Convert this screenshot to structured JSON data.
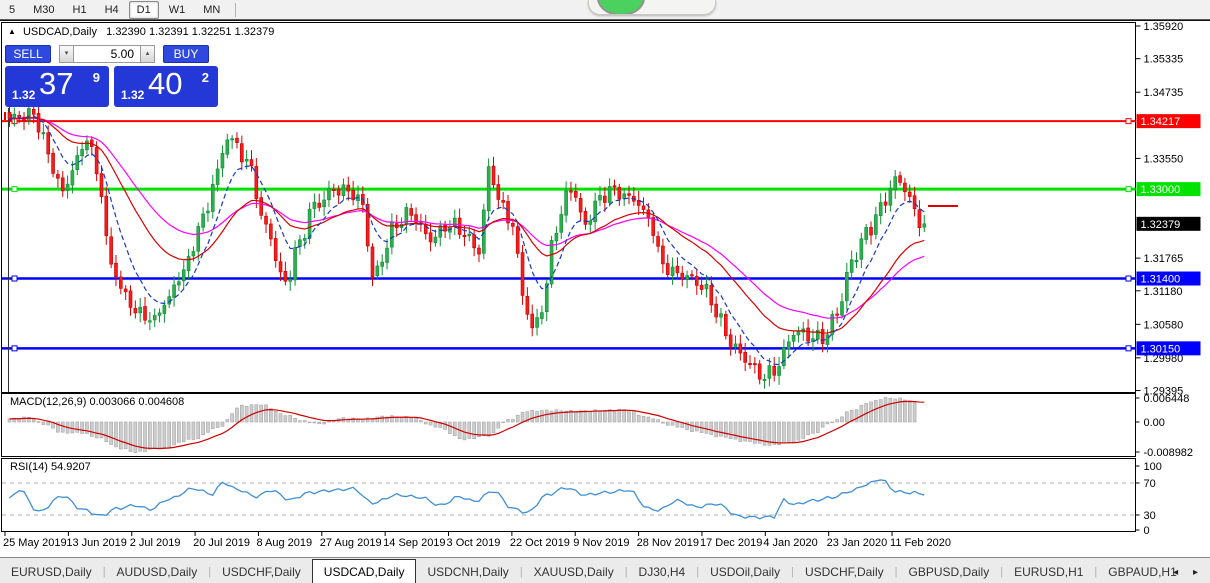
{
  "toolbar": {
    "timeframes": [
      "5",
      "M30",
      "H1",
      "H4",
      "D1",
      "W1",
      "MN"
    ],
    "active": "D1"
  },
  "chart": {
    "quote": {
      "symbol": "USDCAD,Daily",
      "values": "1.32390 1.32391 1.32251 1.32379"
    },
    "trade_panel": {
      "sell_label": "SELL",
      "buy_label": "BUY",
      "volume": "5.00",
      "sell_price": {
        "base": "1.32",
        "big": "37",
        "sup": "9"
      },
      "buy_price": {
        "base": "1.32",
        "big": "40",
        "sup": "2"
      }
    }
  },
  "chart_data": {
    "type": "candlestick",
    "symbol": "USDCAD",
    "timeframe": "Daily",
    "quote_ohlc": [
      1.3239,
      1.32391,
      1.32251,
      1.32379
    ],
    "bid": 1.32379,
    "ask": 1.32402,
    "num_candles": 190,
    "price_axis": {
      "max": 1.3592,
      "min": 1.29395,
      "ticks": [
        "1.35920",
        "1.35335",
        "1.34735",
        "1.33550",
        "1.31765",
        "1.31180",
        "1.30580",
        "1.29980",
        "1.29395"
      ]
    },
    "current_price_tag": {
      "label": "1.32379",
      "color": "#000000"
    },
    "h_lines": [
      {
        "price": 1.34217,
        "label": "1.34217",
        "color": "#ff0000",
        "width": 2
      },
      {
        "price": 1.33,
        "label": "1.33000",
        "color": "#00e200",
        "width": 3
      },
      {
        "price": 1.314,
        "label": "1.31400",
        "color": "#0000ff",
        "width": 2.5
      },
      {
        "price": 1.3015,
        "label": "1.30150",
        "color": "#0000ff",
        "width": 2.5
      }
    ],
    "price_anchors": [
      [
        0,
        1.342
      ],
      [
        3,
        1.3435
      ],
      [
        5,
        1.3442
      ],
      [
        7,
        1.339
      ],
      [
        9,
        1.333
      ],
      [
        11,
        1.3288
      ],
      [
        13,
        1.334
      ],
      [
        16,
        1.3398
      ],
      [
        18,
        1.333
      ],
      [
        21,
        1.316
      ],
      [
        24,
        1.3112
      ],
      [
        27,
        1.3078
      ],
      [
        30,
        1.3058
      ],
      [
        32,
        1.3095
      ],
      [
        36,
        1.316
      ],
      [
        40,
        1.324
      ],
      [
        43,
        1.333
      ],
      [
        45,
        1.3403
      ],
      [
        47,
        1.338
      ],
      [
        49,
        1.3345
      ],
      [
        53,
        1.323
      ],
      [
        57,
        1.3137
      ],
      [
        60,
        1.32
      ],
      [
        63,
        1.327
      ],
      [
        67,
        1.3305
      ],
      [
        70,
        1.3292
      ],
      [
        73,
        1.3268
      ],
      [
        75,
        1.3145
      ],
      [
        77,
        1.318
      ],
      [
        79,
        1.3228
      ],
      [
        83,
        1.3252
      ],
      [
        87,
        1.3218
      ],
      [
        91,
        1.3232
      ],
      [
        94,
        1.3218
      ],
      [
        97,
        1.3196
      ],
      [
        99,
        1.3335
      ],
      [
        102,
        1.3258
      ],
      [
        104,
        1.3232
      ],
      [
        106,
        1.312
      ],
      [
        108,
        1.3052
      ],
      [
        110,
        1.3088
      ],
      [
        113,
        1.3228
      ],
      [
        116,
        1.3308
      ],
      [
        119,
        1.3242
      ],
      [
        122,
        1.3278
      ],
      [
        125,
        1.3298
      ],
      [
        129,
        1.3288
      ],
      [
        132,
        1.3242
      ],
      [
        135,
        1.3162
      ],
      [
        139,
        1.3152
      ],
      [
        143,
        1.3122
      ],
      [
        146,
        1.3082
      ],
      [
        149,
        1.3032
      ],
      [
        152,
        1.2992
      ],
      [
        155,
        1.2962
      ],
      [
        158,
        1.2978
      ],
      [
        160,
        1.3012
      ],
      [
        162,
        1.3042
      ],
      [
        165,
        1.3032
      ],
      [
        168,
        1.3038
      ],
      [
        171,
        1.3082
      ],
      [
        174,
        1.3162
      ],
      [
        177,
        1.3222
      ],
      [
        180,
        1.3272
      ],
      [
        183,
        1.3312
      ],
      [
        185,
        1.3298
      ],
      [
        187,
        1.3258
      ],
      [
        189,
        1.32379
      ]
    ],
    "moving_averages": [
      {
        "name": "fast",
        "period": 8,
        "color": "#1838c8",
        "style": "dashed"
      },
      {
        "name": "medium",
        "period": 24,
        "color": "#d80000",
        "style": "solid"
      },
      {
        "name": "slow",
        "period": 38,
        "color": "#ff00ff",
        "style": "solid"
      }
    ],
    "macd": {
      "label": "MACD(12,26,9) 0.003066 0.004608",
      "main_value": 0.003066,
      "signal_value": 0.004608,
      "axis_ticks": [
        "0.006448",
        "0.00",
        "-0.008982"
      ],
      "anchors": [
        [
          0,
          0.0008
        ],
        [
          4,
          0.0012
        ],
        [
          7,
          -0.0005
        ],
        [
          11,
          -0.0028
        ],
        [
          15,
          -0.0028
        ],
        [
          18,
          -0.004
        ],
        [
          23,
          -0.0068
        ],
        [
          26,
          -0.0078
        ],
        [
          31,
          -0.0068
        ],
        [
          38,
          -0.0045
        ],
        [
          43,
          -0.0015
        ],
        [
          48,
          0.0042
        ],
        [
          52,
          0.0045
        ],
        [
          57,
          0.0018
        ],
        [
          61,
          0.0002
        ],
        [
          64,
          -0.0005
        ],
        [
          69,
          0.001
        ],
        [
          73,
          0.0008
        ],
        [
          78,
          0.0015
        ],
        [
          83,
          0.0012
        ],
        [
          88,
          -0.0012
        ],
        [
          94,
          -0.0045
        ],
        [
          99,
          -0.0035
        ],
        [
          103,
          0.0005
        ],
        [
          107,
          0.0028
        ],
        [
          112,
          0.003
        ],
        [
          117,
          0.0028
        ],
        [
          122,
          0.003
        ],
        [
          127,
          0.0032
        ],
        [
          132,
          0.0012
        ],
        [
          137,
          -0.001
        ],
        [
          142,
          -0.0025
        ],
        [
          147,
          -0.0038
        ],
        [
          152,
          -0.005
        ],
        [
          157,
          -0.006
        ],
        [
          162,
          -0.0052
        ],
        [
          166,
          -0.003
        ],
        [
          170,
          0.0
        ],
        [
          174,
          0.003
        ],
        [
          178,
          0.0052
        ],
        [
          181,
          0.0062
        ],
        [
          184,
          0.006
        ],
        [
          188,
          0.0048
        ]
      ]
    },
    "rsi": {
      "label": "RSI(14) 54.9207",
      "value": 54.9207,
      "axis_ticks": [
        "100",
        "70",
        "30",
        "0"
      ],
      "levels": [
        70,
        30
      ],
      "anchors": [
        [
          0,
          50
        ],
        [
          2,
          62
        ],
        [
          6,
          34
        ],
        [
          11,
          54
        ],
        [
          15,
          37
        ],
        [
          19,
          29
        ],
        [
          22,
          38
        ],
        [
          26,
          42
        ],
        [
          29,
          37
        ],
        [
          33,
          50
        ],
        [
          38,
          63
        ],
        [
          42,
          56
        ],
        [
          44,
          71
        ],
        [
          47,
          62
        ],
        [
          51,
          53
        ],
        [
          54,
          61
        ],
        [
          58,
          49
        ],
        [
          62,
          58
        ],
        [
          67,
          61
        ],
        [
          71,
          63
        ],
        [
          75,
          45
        ],
        [
          80,
          55
        ],
        [
          85,
          52
        ],
        [
          89,
          42
        ],
        [
          93,
          53
        ],
        [
          96,
          47
        ],
        [
          100,
          60
        ],
        [
          104,
          38
        ],
        [
          107,
          33
        ],
        [
          111,
          55
        ],
        [
          115,
          64
        ],
        [
          119,
          55
        ],
        [
          123,
          58
        ],
        [
          128,
          61
        ],
        [
          132,
          38
        ],
        [
          134,
          36
        ],
        [
          138,
          48
        ],
        [
          142,
          40
        ],
        [
          146,
          44
        ],
        [
          151,
          28
        ],
        [
          155,
          27
        ],
        [
          158,
          28
        ],
        [
          160,
          49
        ],
        [
          162,
          43
        ],
        [
          166,
          48
        ],
        [
          170,
          52
        ],
        [
          174,
          60
        ],
        [
          177,
          68
        ],
        [
          180,
          75
        ],
        [
          183,
          60
        ],
        [
          185,
          58
        ],
        [
          187,
          58
        ],
        [
          189,
          54.92
        ]
      ]
    },
    "x_labels": [
      "25 May 2019",
      "13 Jun 2019",
      "2 Jul 2019",
      "20 Jul 2019",
      "8 Aug 2019",
      "27 Aug 2019",
      "14 Sep 2019",
      "3 Oct 2019",
      "22 Oct 2019",
      "9 Nov 2019",
      "28 Nov 2019",
      "17 Dec 2019",
      "4 Jan 2020",
      "23 Jan 2020",
      "11 Feb 2020"
    ]
  },
  "tabs": {
    "items": [
      "EURUSD,Daily",
      "AUDUSD,Daily",
      "USDCHF,Daily",
      "USDCAD,Daily",
      "USDCNH,Daily",
      "XAUUSD,Daily",
      "DJ30,H4",
      "USDOil,Daily",
      "USDCHF,Daily",
      "GBPUSD,Daily",
      "EURUSD,H1",
      "GBPAUD,H1"
    ],
    "active_index": 3,
    "scroll_left": "◂",
    "scroll_right": "▸"
  }
}
